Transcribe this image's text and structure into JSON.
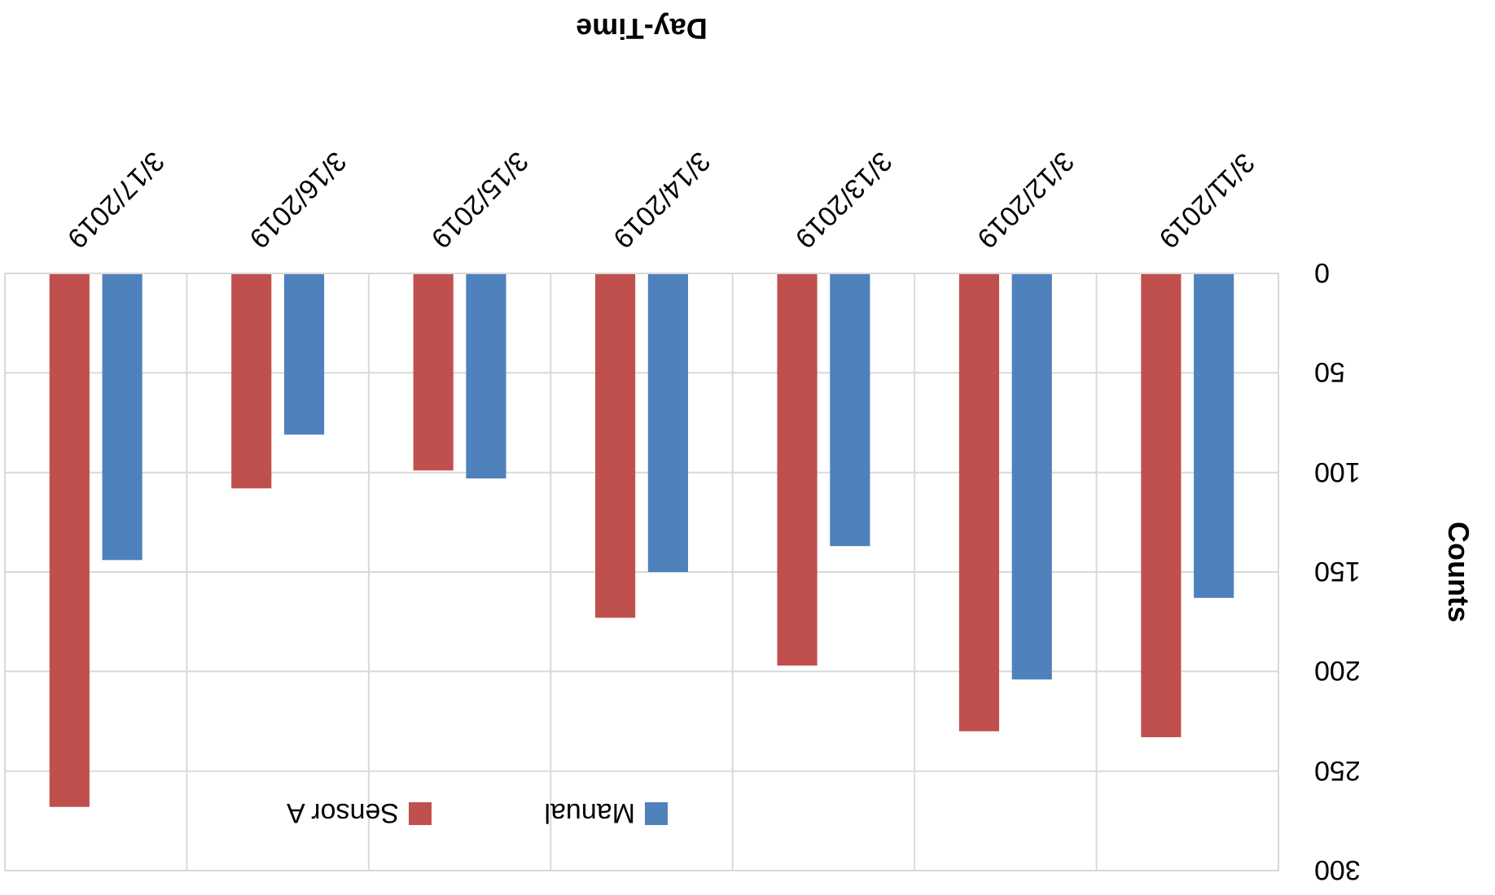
{
  "chart_data": {
    "type": "bar",
    "xlabel": "Day-Time",
    "ylabel": "Counts",
    "categories": [
      "3/17/2019",
      "3/16/2019",
      "3/15/2019",
      "3/14/2019",
      "3/13/2019",
      "3/12/2019",
      "3/11/2019"
    ],
    "series": [
      {
        "name": "Sensor A",
        "color": "#c0504d",
        "values": [
          268,
          108,
          99,
          173,
          197,
          230,
          233
        ]
      },
      {
        "name": "Manual",
        "color": "#4f81bd",
        "values": [
          144,
          81,
          103,
          150,
          137,
          204,
          163
        ]
      }
    ],
    "ylim": [
      300,
      0
    ],
    "yticks": [
      0,
      50,
      100,
      150,
      200,
      250,
      300
    ],
    "grid": true,
    "legend": "bottom left"
  }
}
